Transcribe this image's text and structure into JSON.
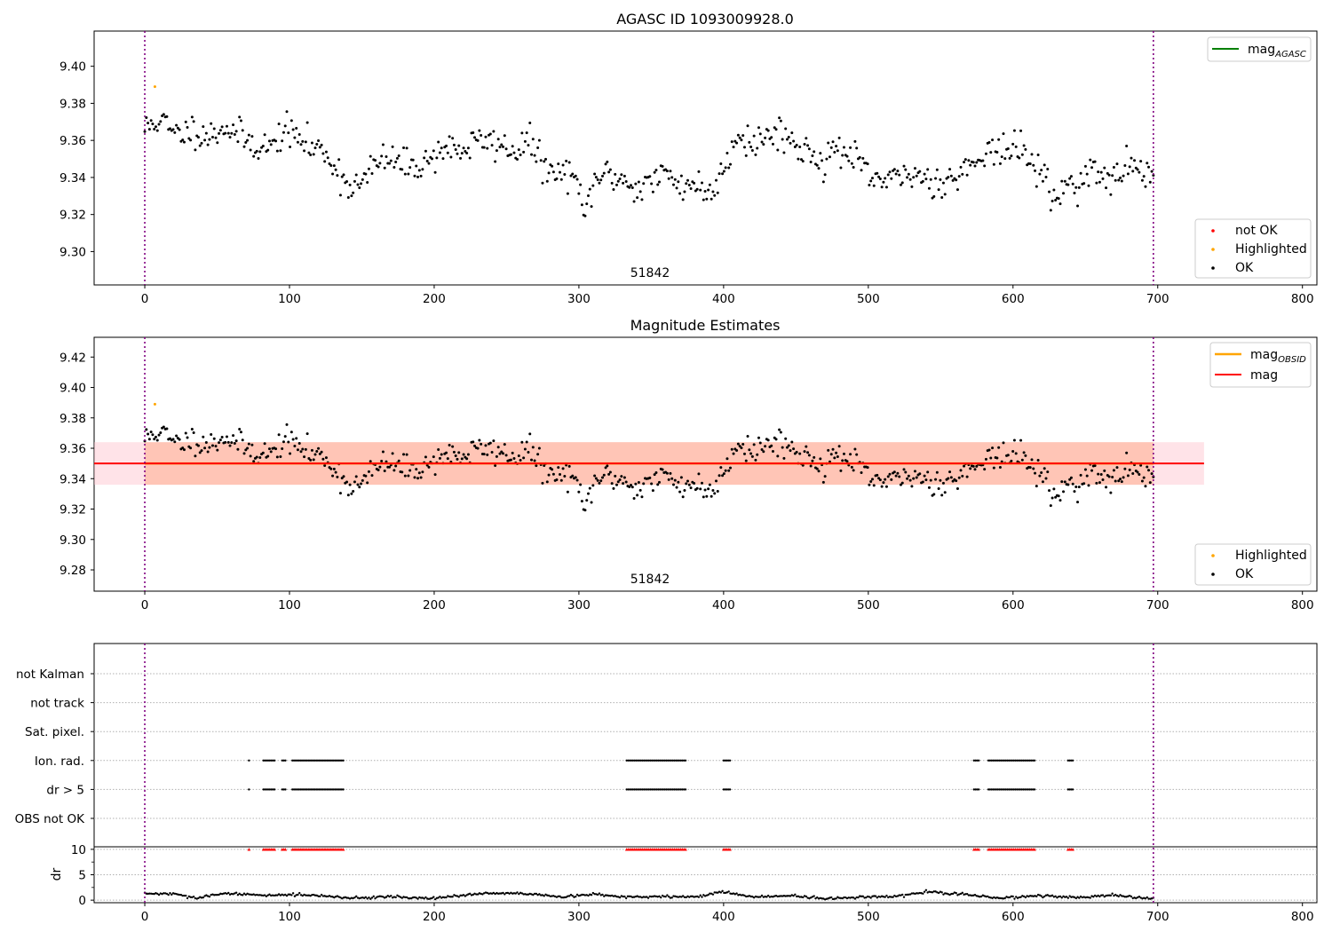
{
  "figure": {
    "obsid_label": "51842"
  },
  "chart_data": [
    {
      "type": "scatter",
      "title": "AGASC ID 1093009928.0",
      "xlim": [
        -35,
        810
      ],
      "ylim": [
        9.282,
        9.419
      ],
      "xticks": [
        0,
        100,
        200,
        300,
        400,
        500,
        600,
        700,
        800
      ],
      "yticks": [
        "9.30",
        "9.32",
        "9.34",
        "9.36",
        "9.38",
        "9.40"
      ],
      "obsid_boundaries": [
        0,
        697
      ],
      "legend_lines": [
        {
          "name": "mag_AGASC",
          "label": "mag",
          "sub": "AGASC",
          "color": "#008000"
        }
      ],
      "legend_points": [
        {
          "name": "not OK",
          "color": "#ff0000"
        },
        {
          "name": "Highlighted",
          "color": "#ffa500"
        },
        {
          "name": "OK",
          "color": "#000000"
        }
      ],
      "highlighted_points": [
        [
          7,
          9.389
        ]
      ],
      "ok_points_anchors": [
        [
          0,
          9.366
        ],
        [
          10,
          9.372
        ],
        [
          20,
          9.363
        ],
        [
          35,
          9.366
        ],
        [
          45,
          9.362
        ],
        [
          55,
          9.368
        ],
        [
          62,
          9.364
        ],
        [
          75,
          9.358
        ],
        [
          88,
          9.356
        ],
        [
          96,
          9.366
        ],
        [
          105,
          9.362
        ],
        [
          115,
          9.356
        ],
        [
          125,
          9.354
        ],
        [
          132,
          9.345
        ],
        [
          140,
          9.336
        ],
        [
          150,
          9.336
        ],
        [
          160,
          9.348
        ],
        [
          170,
          9.35
        ],
        [
          180,
          9.346
        ],
        [
          195,
          9.348
        ],
        [
          205,
          9.356
        ],
        [
          220,
          9.355
        ],
        [
          233,
          9.36
        ],
        [
          245,
          9.358
        ],
        [
          255,
          9.354
        ],
        [
          265,
          9.36
        ],
        [
          275,
          9.347
        ],
        [
          285,
          9.34
        ],
        [
          295,
          9.345
        ],
        [
          300,
          9.33
        ],
        [
          304,
          9.318
        ],
        [
          310,
          9.338
        ],
        [
          320,
          9.342
        ],
        [
          330,
          9.339
        ],
        [
          340,
          9.334
        ],
        [
          350,
          9.338
        ],
        [
          360,
          9.342
        ],
        [
          370,
          9.336
        ],
        [
          380,
          9.337
        ],
        [
          390,
          9.33
        ],
        [
          400,
          9.345
        ],
        [
          410,
          9.365
        ],
        [
          420,
          9.358
        ],
        [
          430,
          9.362
        ],
        [
          440,
          9.366
        ],
        [
          450,
          9.356
        ],
        [
          460,
          9.354
        ],
        [
          470,
          9.349
        ],
        [
          480,
          9.356
        ],
        [
          490,
          9.35
        ],
        [
          500,
          9.34
        ],
        [
          510,
          9.338
        ],
        [
          520,
          9.338
        ],
        [
          530,
          9.343
        ],
        [
          540,
          9.339
        ],
        [
          550,
          9.338
        ],
        [
          560,
          9.34
        ],
        [
          570,
          9.346
        ],
        [
          580,
          9.356
        ],
        [
          590,
          9.353
        ],
        [
          600,
          9.356
        ],
        [
          610,
          9.352
        ],
        [
          620,
          9.342
        ],
        [
          628,
          9.328
        ],
        [
          636,
          9.335
        ],
        [
          645,
          9.338
        ],
        [
          655,
          9.344
        ],
        [
          665,
          9.337
        ],
        [
          675,
          9.343
        ],
        [
          685,
          9.348
        ],
        [
          697,
          9.337
        ]
      ],
      "ok_point_count": 640,
      "ok_point_scatter": 0.008,
      "ok_point_seed": 11,
      "annotation": "51842"
    },
    {
      "type": "scatter",
      "title": "Magnitude Estimates",
      "xlim": [
        -35,
        810
      ],
      "ylim": [
        9.266,
        9.433
      ],
      "xticks": [
        0,
        100,
        200,
        300,
        400,
        500,
        600,
        700,
        800
      ],
      "yticks": [
        "9.28",
        "9.30",
        "9.32",
        "9.34",
        "9.36",
        "9.38",
        "9.40",
        "9.42"
      ],
      "obsid_boundaries": [
        0,
        697
      ],
      "mag_obsid": {
        "x": [
          0,
          697
        ],
        "y": 9.35,
        "band": [
          9.336,
          9.364
        ],
        "color": "#ffa500",
        "band_color": "#ffa07a"
      },
      "mag": {
        "x": [
          -35,
          732
        ],
        "y": 9.35,
        "band": [
          9.336,
          9.364
        ],
        "color": "#ff0000",
        "band_color": "#ffc0cb"
      },
      "legend_lines": [
        {
          "name": "mag_OBSID",
          "label": "mag",
          "sub": "OBSID",
          "color": "#ffa500"
        },
        {
          "name": "mag",
          "label": "mag",
          "sub": "",
          "color": "#ff0000"
        }
      ],
      "legend_points": [
        {
          "name": "Highlighted",
          "color": "#ffa500"
        },
        {
          "name": "OK",
          "color": "#000000"
        }
      ],
      "highlighted_points": [
        [
          7,
          9.389
        ]
      ],
      "ok_points_same_as_panel_1": true,
      "annotation": "51842"
    },
    {
      "type": "scatter",
      "title": "",
      "xlim": [
        -35,
        810
      ],
      "xticks": [
        0,
        100,
        200,
        300,
        400,
        500,
        600,
        700,
        800
      ],
      "obsid_boundaries": [
        0,
        697
      ],
      "flag_rows": [
        "not Kalman",
        "not track",
        "Sat. pixel.",
        "Ion. rad.",
        "dr > 5",
        "OBS not OK"
      ],
      "flag_segments": [
        [
          72,
          73
        ],
        [
          82,
          90
        ],
        [
          95,
          98
        ],
        [
          102,
          138
        ],
        [
          333,
          374
        ],
        [
          400,
          405
        ],
        [
          573,
          577
        ],
        [
          583,
          616
        ],
        [
          638,
          642
        ]
      ],
      "flag_rows_with_marks": [
        "Ion. rad.",
        "dr > 5"
      ],
      "dr_panel": {
        "ylabel": "dr",
        "ylim": [
          -0.5,
          10.5
        ],
        "yticks": [
          "0",
          "5",
          "10"
        ],
        "clip_value": 10,
        "clipped_marker_color": "#ff0000",
        "dr_anchors": [
          [
            0,
            1.3
          ],
          [
            20,
            1.2
          ],
          [
            35,
            0.4
          ],
          [
            55,
            1.3
          ],
          [
            80,
            1.0
          ],
          [
            110,
            1.1
          ],
          [
            140,
            0.4
          ],
          [
            170,
            0.7
          ],
          [
            200,
            0.3
          ],
          [
            230,
            1.3
          ],
          [
            260,
            1.3
          ],
          [
            290,
            0.6
          ],
          [
            310,
            1.2
          ],
          [
            330,
            0.6
          ],
          [
            355,
            0.7
          ],
          [
            380,
            0.6
          ],
          [
            400,
            1.7
          ],
          [
            420,
            0.6
          ],
          [
            450,
            0.9
          ],
          [
            470,
            0.2
          ],
          [
            490,
            0.6
          ],
          [
            520,
            0.7
          ],
          [
            540,
            1.6
          ],
          [
            570,
            1.1
          ],
          [
            590,
            0.4
          ],
          [
            620,
            0.9
          ],
          [
            645,
            0.5
          ],
          [
            670,
            0.9
          ],
          [
            697,
            0.3
          ]
        ],
        "dr_point_count": 640
      }
    }
  ]
}
